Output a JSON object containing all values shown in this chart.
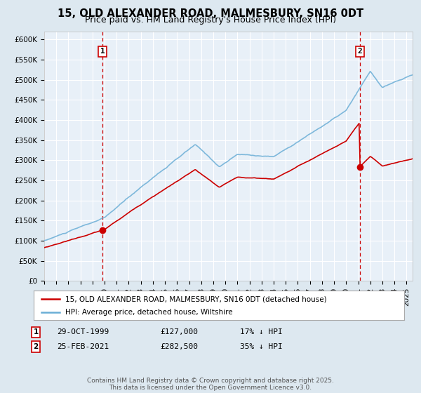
{
  "title": "15, OLD ALEXANDER ROAD, MALMESBURY, SN16 0DT",
  "subtitle": "Price paid vs. HM Land Registry's House Price Index (HPI)",
  "ylabel_ticks": [
    "£0",
    "£50K",
    "£100K",
    "£150K",
    "£200K",
    "£250K",
    "£300K",
    "£350K",
    "£400K",
    "£450K",
    "£500K",
    "£550K",
    "£600K"
  ],
  "ylim": [
    0,
    620000
  ],
  "ytick_vals": [
    0,
    50000,
    100000,
    150000,
    200000,
    250000,
    300000,
    350000,
    400000,
    450000,
    500000,
    550000,
    600000
  ],
  "xlim_start": 1995.0,
  "xlim_end": 2025.5,
  "sale1_x": 1999.83,
  "sale1_y": 127000,
  "sale1_label": "1",
  "sale1_date": "29-OCT-1999",
  "sale1_price": "£127,000",
  "sale1_hpi": "17% ↓ HPI",
  "sale2_x": 2021.15,
  "sale2_y": 282500,
  "sale2_label": "2",
  "sale2_date": "25-FEB-2021",
  "sale2_price": "£282,500",
  "sale2_hpi": "35% ↓ HPI",
  "hpi_color": "#6baed6",
  "price_color": "#cc0000",
  "vline_color": "#cc0000",
  "background_color": "#dde8f0",
  "plot_bg_color": "#e8f0f8",
  "grid_color": "#ffffff",
  "legend_label_red": "15, OLD ALEXANDER ROAD, MALMESBURY, SN16 0DT (detached house)",
  "legend_label_blue": "HPI: Average price, detached house, Wiltshire",
  "footer": "Contains HM Land Registry data © Crown copyright and database right 2025.\nThis data is licensed under the Open Government Licence v3.0.",
  "title_fontsize": 10.5,
  "subtitle_fontsize": 9,
  "tick_fontsize": 7.5,
  "legend_fontsize": 7.5,
  "footer_fontsize": 6.5
}
